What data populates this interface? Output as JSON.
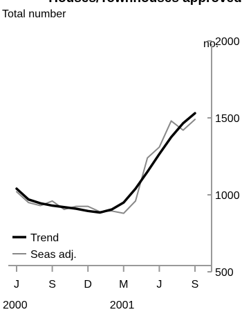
{
  "chart_data": {
    "type": "line",
    "title": "Houses/Townhouses approved",
    "subtitle": "Total number",
    "unit_label": "no.",
    "x_month_labels": [
      "J",
      "S",
      "D",
      "M",
      "J",
      "S"
    ],
    "x_year_labels": [
      "2000",
      "2001"
    ],
    "y_ticks": [
      "2000",
      "1500",
      "1000",
      "500"
    ],
    "ylim": [
      500,
      2000
    ],
    "xlim": [
      0,
      15
    ],
    "x_label_months_index": [
      0,
      3,
      6,
      9,
      12,
      15
    ],
    "x_year_months_index": [
      0,
      9
    ],
    "legend_position": "bottom-left",
    "series": [
      {
        "name": "Trend",
        "color": "#000000",
        "x": [
          0,
          1,
          2,
          3,
          4,
          5,
          6,
          7,
          8,
          9,
          10,
          11,
          12,
          13,
          14,
          15
        ],
        "values": [
          1040,
          970,
          945,
          930,
          920,
          910,
          895,
          885,
          905,
          950,
          1040,
          1150,
          1265,
          1375,
          1465,
          1530
        ]
      },
      {
        "name": "Seas adj.",
        "color": "#888888",
        "x": [
          0,
          1,
          2,
          3,
          4,
          5,
          6,
          7,
          8,
          9,
          10,
          11,
          12,
          13,
          14,
          15
        ],
        "values": [
          1020,
          950,
          930,
          960,
          905,
          925,
          925,
          890,
          895,
          880,
          960,
          1240,
          1310,
          1480,
          1420,
          1490
        ]
      }
    ]
  }
}
